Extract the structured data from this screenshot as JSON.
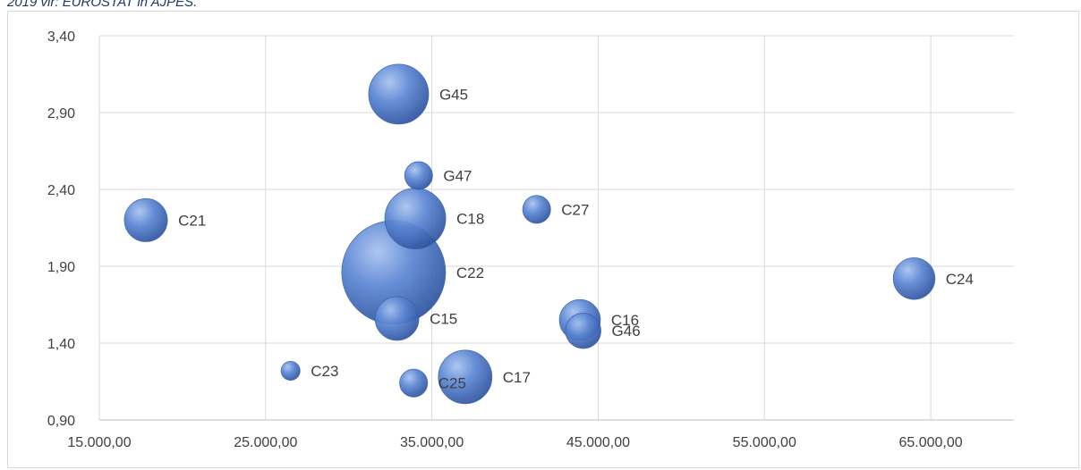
{
  "caption": "2019 vir: EUROSTAT in AJPES.",
  "chart_data": {
    "type": "bubble",
    "title": "",
    "xlabel": "",
    "ylabel": "",
    "xlim": [
      15000,
      70000
    ],
    "ylim": [
      0.9,
      3.4
    ],
    "x_ticks": [
      15000,
      25000,
      35000,
      45000,
      55000,
      65000
    ],
    "x_tick_labels": [
      "15.000,00",
      "25.000,00",
      "35.000,00",
      "45.000,00",
      "55.000,00",
      "65.000,00"
    ],
    "y_ticks": [
      0.9,
      1.4,
      1.9,
      2.4,
      2.9,
      3.4
    ],
    "y_tick_labels": [
      "0,90",
      "1,40",
      "1,90",
      "2,40",
      "2,90",
      "3,40"
    ],
    "grid": true,
    "bubble_color": "#4472c4",
    "points": [
      {
        "label": "G45",
        "x": 33000,
        "y": 3.02,
        "size": 6
      },
      {
        "label": "G47",
        "x": 34200,
        "y": 2.49,
        "size": 1.3
      },
      {
        "label": "C21",
        "x": 17800,
        "y": 2.2,
        "size": 3.1
      },
      {
        "label": "C18",
        "x": 34000,
        "y": 2.21,
        "size": 6.2
      },
      {
        "label": "C27",
        "x": 41300,
        "y": 2.27,
        "size": 1.3
      },
      {
        "label": "C22",
        "x": 32700,
        "y": 1.86,
        "size": 18
      },
      {
        "label": "C24",
        "x": 64000,
        "y": 1.82,
        "size": 2.9
      },
      {
        "label": "C15",
        "x": 32900,
        "y": 1.56,
        "size": 3.2
      },
      {
        "label": "C16",
        "x": 43900,
        "y": 1.55,
        "size": 2.8
      },
      {
        "label": "G46",
        "x": 44100,
        "y": 1.48,
        "size": 2.1
      },
      {
        "label": "C23",
        "x": 26500,
        "y": 1.22,
        "size": 0.6
      },
      {
        "label": "C25",
        "x": 33900,
        "y": 1.14,
        "size": 1.3
      },
      {
        "label": "C17",
        "x": 37000,
        "y": 1.18,
        "size": 4.8
      }
    ]
  }
}
